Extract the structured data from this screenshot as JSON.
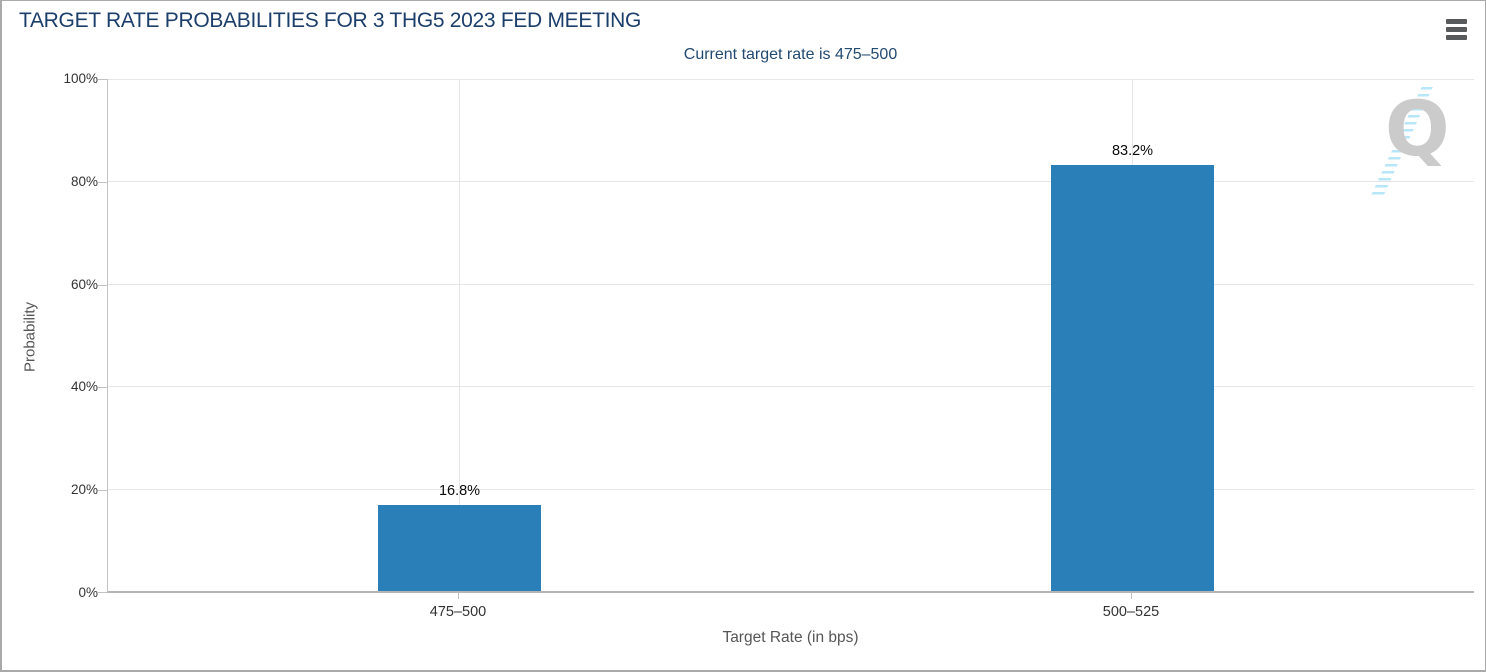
{
  "chart_data": {
    "type": "bar",
    "title": "TARGET RATE PROBABILITIES FOR 3 THG5 2023 FED MEETING",
    "subtitle": "Current target rate is 475–500",
    "categories": [
      "475–500",
      "500–525"
    ],
    "values": [
      16.8,
      83.2
    ],
    "value_labels": [
      "16.8%",
      "83.2%"
    ],
    "xlabel": "Target Rate (in bps)",
    "ylabel": "Probability",
    "ylim": [
      0,
      100
    ],
    "yticks": [
      "0%",
      "20%",
      "40%",
      "60%",
      "80%",
      "100%"
    ],
    "grid": "horizontal gridlines at 20% steps, vertical gridline at each category center",
    "legend": "none",
    "bar_color": "#2a7fb8"
  },
  "header": {
    "menu_icon": "hamburger-menu-icon"
  },
  "watermark": {
    "letter": "Q"
  },
  "colors": {
    "title_navy": "#1c3e6b",
    "subtitle_navy": "#234a70",
    "bar_blue": "#2a7fb8",
    "gridline_gray": "#e6e6e6",
    "axis_gray": "#b5b5b5",
    "tick_text": "#333333",
    "axis_title_gray": "#565656",
    "card_border": "#a9a9a9",
    "hamburger_gray": "#58595b",
    "watermark_gray": "#cbcbcb",
    "watermark_stripe_blue": "#aee3f7"
  }
}
